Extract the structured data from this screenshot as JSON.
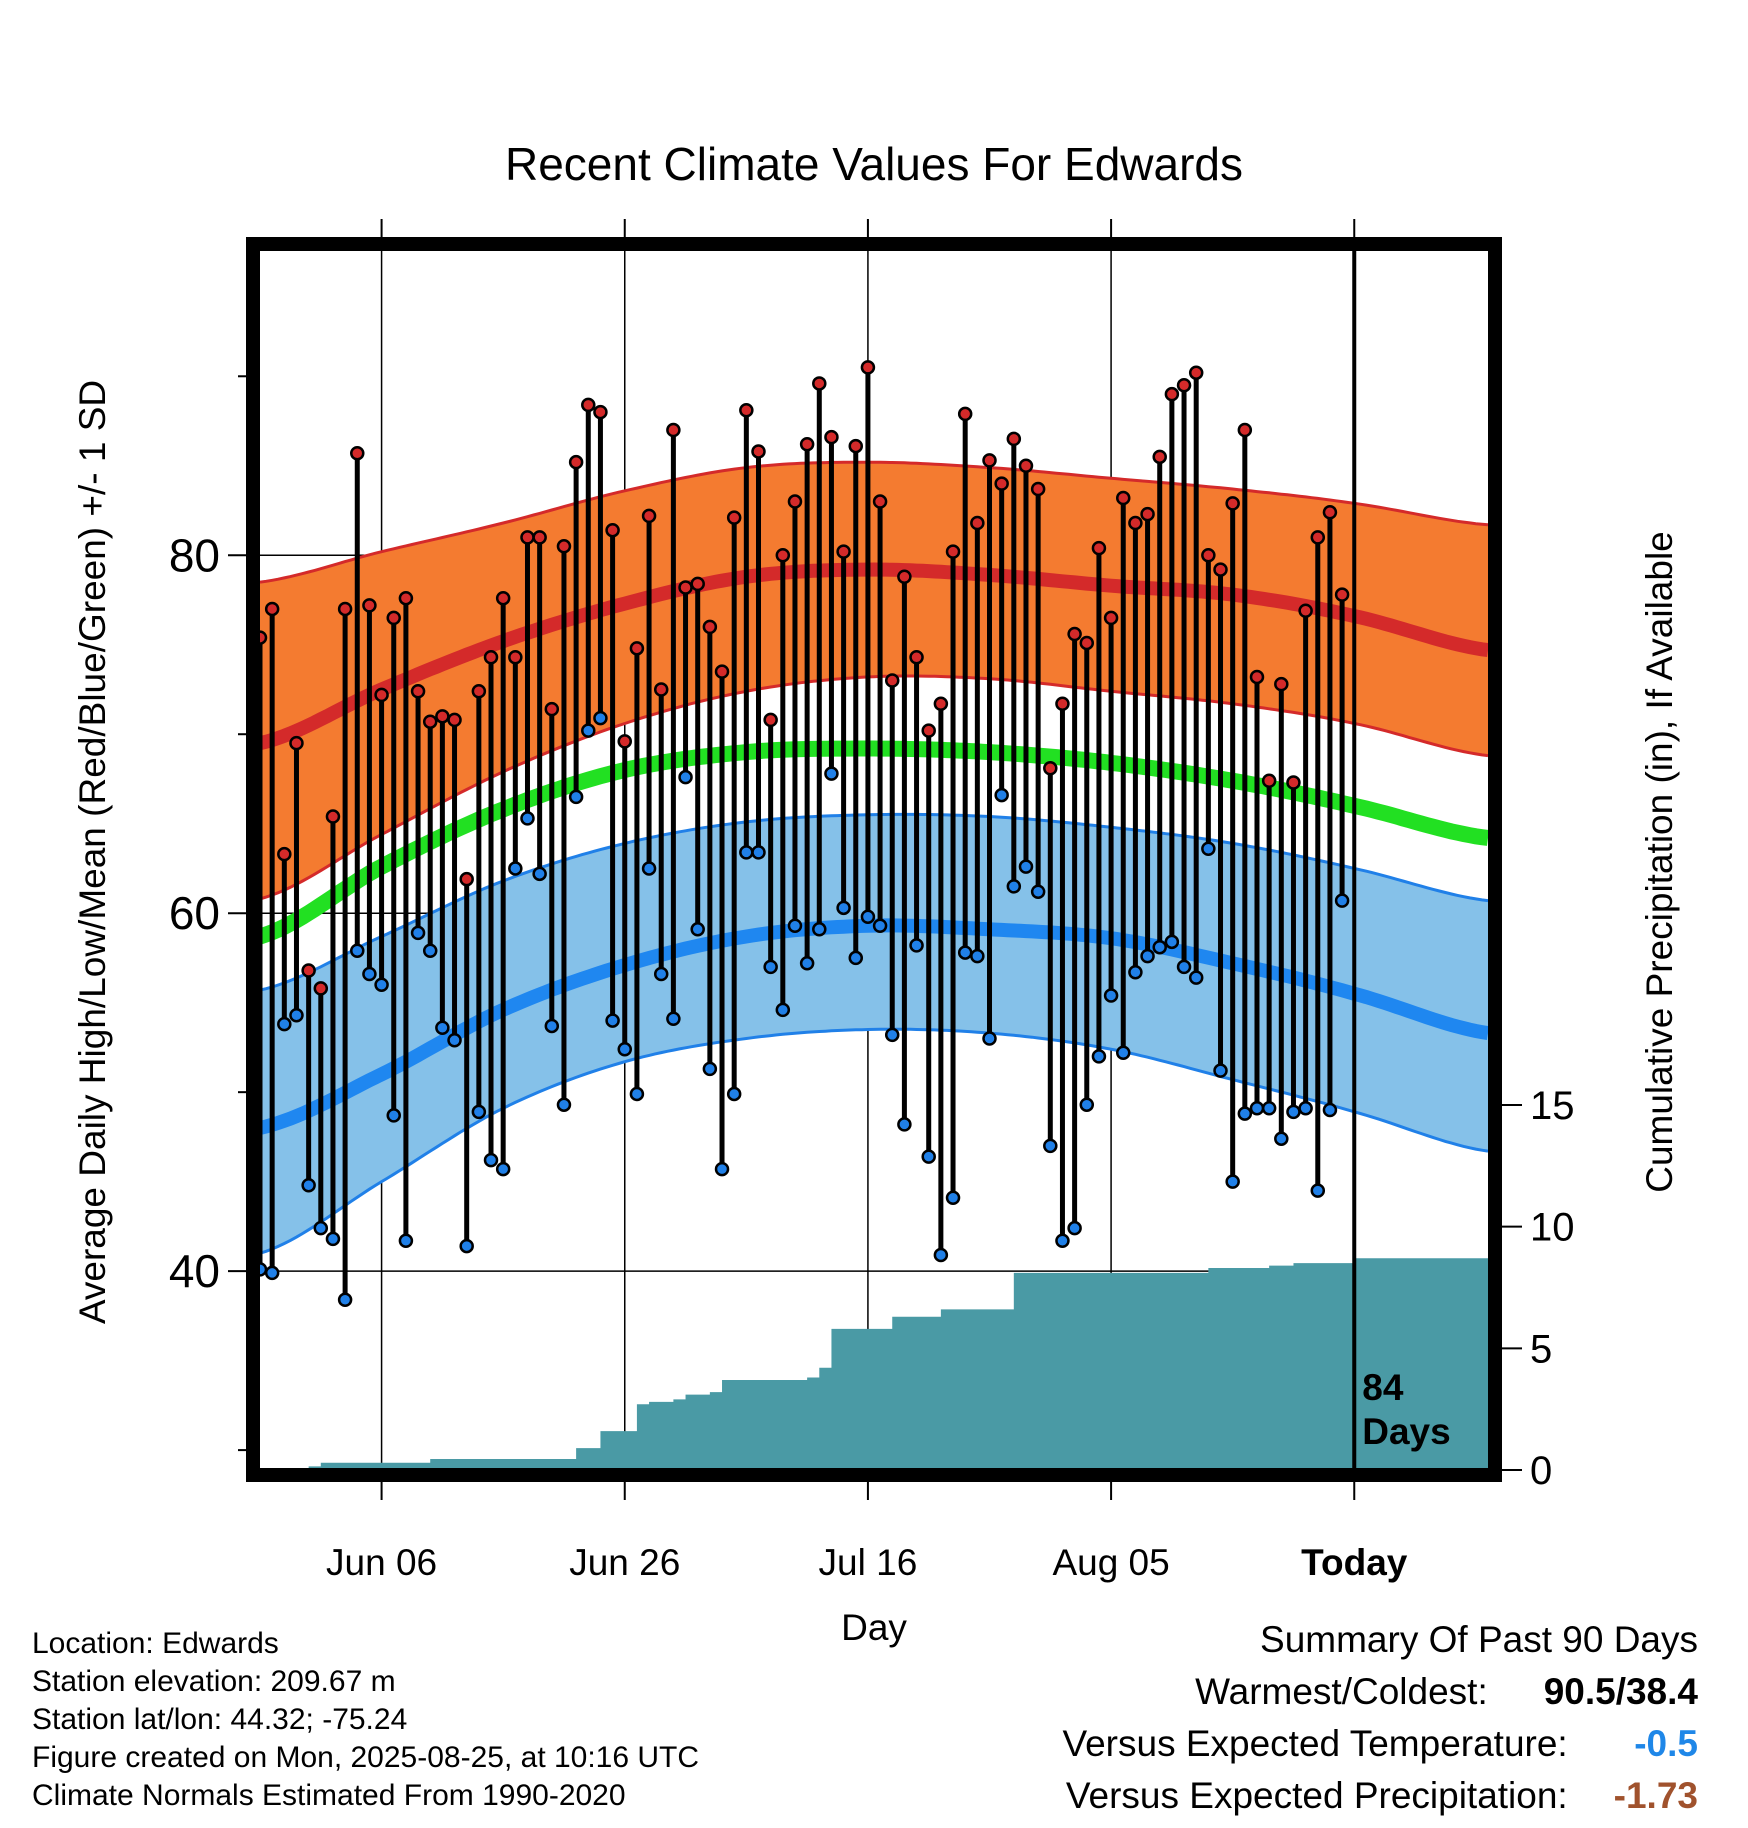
{
  "chart_data": {
    "type": "line",
    "title": "Recent Climate Values For Edwards",
    "xlabel": "Day",
    "ylabel": "Average Daily High/Low/Mean (Red/Blue/Green) +/- 1 SD",
    "y2label": "Cumulative Precipitation (in), If Available",
    "x_ticks": [
      "Jun 06",
      "Jun 26",
      "Jul 16",
      "Aug 05",
      "Today"
    ],
    "y_ticks": [
      "40",
      "60",
      "80"
    ],
    "y2_ticks": [
      "0",
      "5",
      "10",
      "15"
    ],
    "xlim": [
      "2025-05-27",
      "2025-09-05"
    ],
    "ylim": [
      29,
      97
    ],
    "y2lim": [
      0,
      15
    ],
    "today": "2025-08-25",
    "today_label": "84 Days",
    "normals": {
      "days": [
        "2025-05-27",
        "2025-06-06",
        "2025-06-16",
        "2025-06-26",
        "2025-07-06",
        "2025-07-16",
        "2025-07-26",
        "2025-08-05",
        "2025-08-15",
        "2025-08-25",
        "2025-09-05"
      ],
      "high_mean": [
        69.5,
        72.5,
        75.2,
        77.3,
        78.8,
        79.2,
        78.9,
        78.3,
        77.8,
        76.6,
        74.7
      ],
      "high_sd_upper": [
        78.5,
        80.2,
        81.8,
        83.6,
        84.9,
        85.2,
        84.9,
        84.3,
        83.7,
        82.9,
        81.7
      ],
      "high_sd_lower": [
        60.8,
        64.4,
        67.9,
        70.6,
        72.4,
        73.2,
        73.1,
        72.4,
        71.7,
        70.6,
        68.8
      ],
      "mean": [
        58.7,
        62.6,
        65.8,
        68.0,
        69.0,
        69.2,
        69.0,
        68.4,
        67.4,
        66.0,
        64.2
      ],
      "low_mean": [
        48.0,
        51.0,
        54.6,
        57.1,
        58.7,
        59.3,
        59.1,
        58.6,
        57.2,
        55.5,
        53.3
      ],
      "low_sd_upper": [
        55.7,
        58.7,
        61.8,
        63.9,
        65.1,
        65.5,
        65.4,
        64.8,
        63.9,
        62.5,
        60.7
      ],
      "low_sd_lower": [
        41.0,
        45.0,
        49.1,
        51.7,
        53.0,
        53.5,
        53.3,
        52.4,
        50.7,
        48.9,
        46.7
      ]
    },
    "series": [
      {
        "name": "High",
        "start_day": "2025-05-27",
        "color": "#d42a2a",
        "values": [
          75.4,
          77.0,
          63.3,
          69.5,
          56.8,
          55.8,
          65.4,
          77.0,
          85.7,
          77.2,
          72.2,
          76.5,
          77.6,
          72.4,
          70.7,
          71.0,
          70.8,
          61.9,
          72.4,
          74.3,
          77.6,
          74.3,
          81.0,
          81.0,
          71.4,
          80.5,
          85.2,
          88.4,
          88.0,
          81.4,
          69.6,
          74.8,
          82.2,
          72.5,
          87.0,
          78.2,
          78.4,
          76.0,
          73.5,
          82.1,
          88.1,
          85.8,
          70.8,
          80.0,
          83.0,
          86.2,
          89.6,
          86.6,
          80.2,
          86.1,
          90.5,
          83.0,
          73.0,
          78.8,
          74.3,
          70.2,
          71.7,
          80.2,
          87.9,
          81.8,
          85.3,
          84.0,
          86.5,
          85.0,
          83.7,
          68.1,
          71.7,
          75.6,
          75.1,
          80.4,
          76.5,
          83.2,
          81.8,
          82.3,
          85.5,
          89.0,
          89.5,
          90.2,
          80.0,
          79.2,
          82.9,
          87.0,
          73.2,
          67.4,
          72.8,
          67.3,
          76.9,
          81.0,
          82.4,
          77.8
        ]
      },
      {
        "name": "Low",
        "start_day": "2025-05-27",
        "color": "#2080e8",
        "values": [
          40.1,
          39.9,
          53.8,
          54.3,
          44.8,
          42.4,
          41.8,
          38.4,
          57.9,
          56.6,
          56.0,
          48.7,
          41.7,
          58.9,
          57.9,
          53.6,
          52.9,
          41.4,
          48.9,
          46.2,
          45.7,
          62.5,
          65.3,
          62.2,
          53.7,
          49.3,
          66.5,
          70.2,
          70.9,
          54.0,
          52.4,
          49.9,
          62.5,
          56.6,
          54.1,
          67.6,
          59.1,
          51.3,
          45.7,
          49.9,
          63.4,
          63.4,
          57.0,
          54.6,
          59.3,
          57.2,
          59.1,
          67.8,
          60.3,
          57.5,
          59.8,
          59.3,
          53.2,
          48.2,
          58.2,
          46.4,
          40.9,
          44.1,
          57.8,
          57.6,
          53.0,
          66.6,
          61.5,
          62.6,
          61.2,
          47.0,
          41.7,
          42.4,
          49.3,
          52.0,
          55.4,
          52.2,
          56.7,
          57.6,
          58.1,
          58.4,
          57.0,
          56.4,
          63.6,
          51.2,
          45.0,
          48.8,
          49.1,
          49.1,
          47.4,
          48.9,
          49.1,
          44.5,
          49.0,
          60.7
        ]
      }
    ],
    "precip": {
      "days": [
        "2025-05-27",
        "2025-05-31",
        "2025-06-01",
        "2025-06-09",
        "2025-06-10",
        "2025-06-21",
        "2025-06-22",
        "2025-06-23",
        "2025-06-24",
        "2025-06-25",
        "2025-06-27",
        "2025-06-28",
        "2025-06-30",
        "2025-07-01",
        "2025-07-03",
        "2025-07-04",
        "2025-07-11",
        "2025-07-12",
        "2025-07-13",
        "2025-07-17",
        "2025-07-18",
        "2025-07-21",
        "2025-07-22",
        "2025-07-23",
        "2025-07-27",
        "2025-07-28",
        "2025-07-29",
        "2025-08-12",
        "2025-08-13",
        "2025-08-18",
        "2025-08-20",
        "2025-08-25",
        "2025-09-05"
      ],
      "values": [
        0,
        0.15,
        0.3,
        0.3,
        0.45,
        0.45,
        0.9,
        0.9,
        1.6,
        1.6,
        2.7,
        2.8,
        2.9,
        3.1,
        3.2,
        3.7,
        3.8,
        4.2,
        5.8,
        5.8,
        6.3,
        6.3,
        6.6,
        6.6,
        6.6,
        8.1,
        8.1,
        8.1,
        8.3,
        8.4,
        8.5,
        8.7,
        8.7
      ]
    }
  },
  "info": {
    "location": "Location: Edwards",
    "elevation": "Station elevation: 209.67 m",
    "latlon": "Station lat/lon: 44.32; -75.24",
    "created": "Figure created on Mon, 2025-08-25, at 10:16 UTC",
    "normals_period": "Climate Normals Estimated From 1990-2020"
  },
  "summary": {
    "title": "Summary Of Past 90 Days",
    "warm_cold_label": "Warmest/Coldest:",
    "warm_cold_value": "90.5/38.4",
    "temp_label": "Versus Expected Temperature:",
    "temp_value": "-0.5",
    "temp_color": "#1f87e8",
    "precip_label": "Versus Expected Precipitation:",
    "precip_value": "-1.73",
    "precip_color": "#a0522d"
  }
}
